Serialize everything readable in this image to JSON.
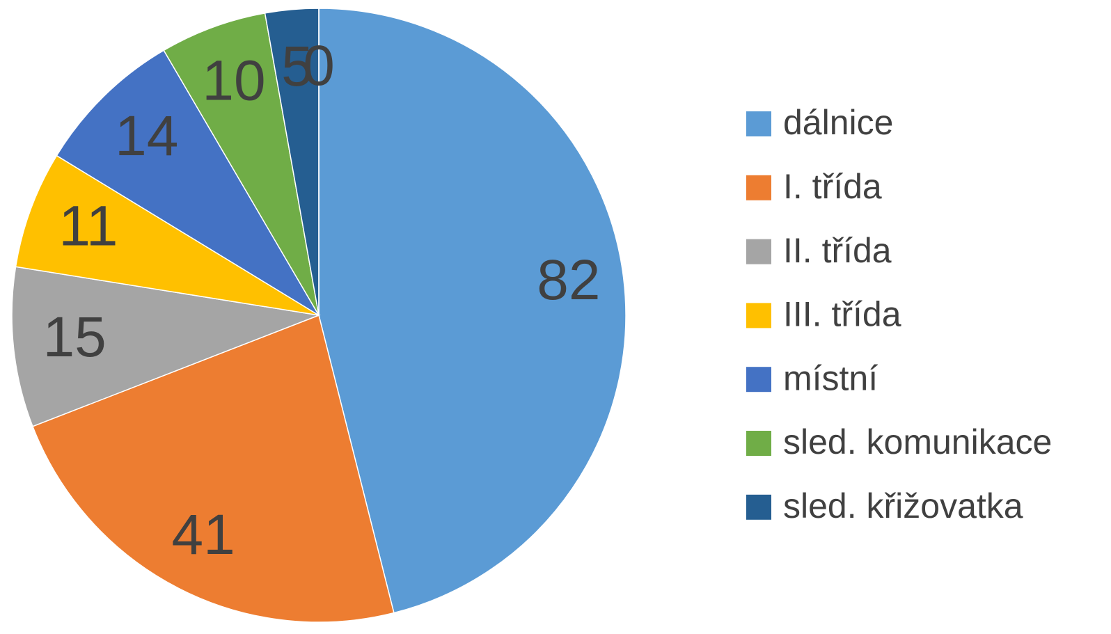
{
  "chart_data": {
    "type": "pie",
    "categories": [
      "dálnice",
      "I. třída",
      "II. třída",
      "III. třída",
      "místní",
      "sled. komunikace",
      "sled. křižovatka",
      null
    ],
    "values": [
      82,
      41,
      15,
      11,
      14,
      10,
      5,
      0
    ],
    "colors": [
      "#5b9bd5",
      "#ed7d31",
      "#a5a5a5",
      "#ffc000",
      "#4472c4",
      "#70ad47",
      "#255e91",
      "#264478"
    ],
    "legend": "right"
  }
}
